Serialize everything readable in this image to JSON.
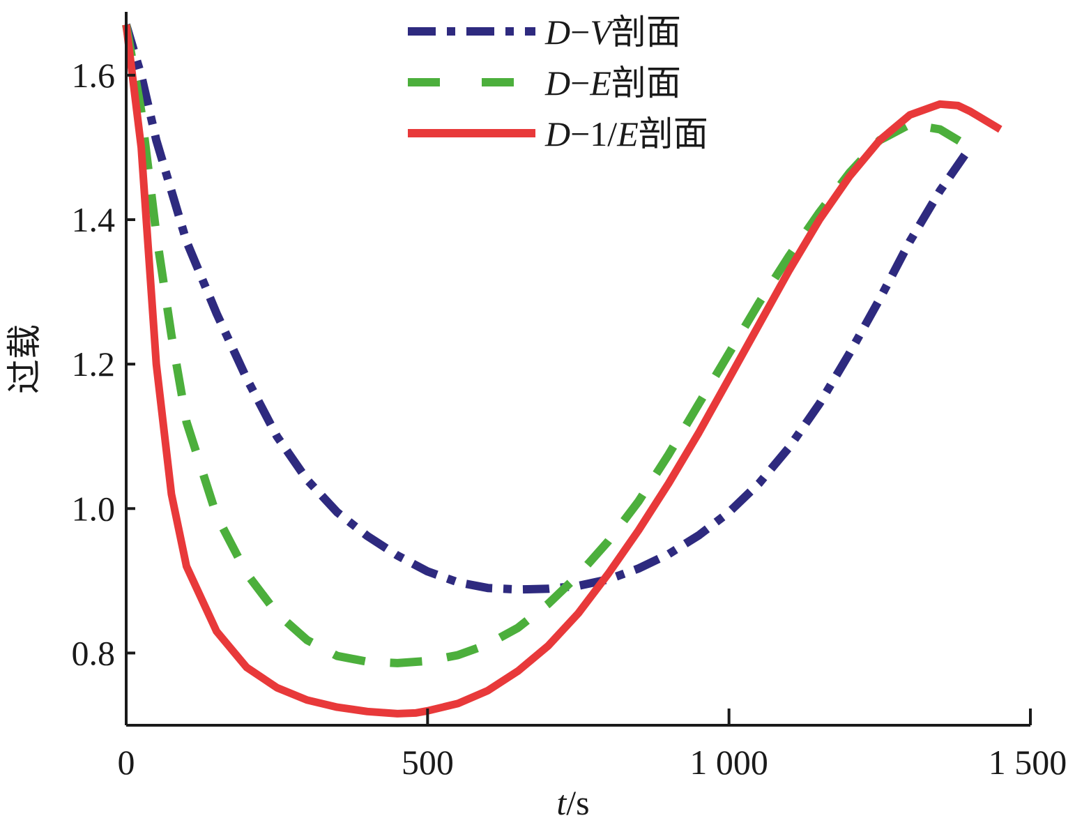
{
  "chart_data": {
    "type": "line",
    "xlabel": "t/s",
    "ylabel": "过载",
    "xlim": [
      0,
      1500
    ],
    "ylim": [
      0.7,
      1.68
    ],
    "x_ticks": [
      0,
      500,
      1000,
      1500
    ],
    "x_tick_labels": [
      "0",
      "500",
      "1 000",
      "1 500"
    ],
    "y_ticks": [
      0.8,
      1.0,
      1.2,
      1.4,
      1.6
    ],
    "y_tick_labels": [
      "0.8",
      "1.0",
      "1.2",
      "1.4",
      "1.6"
    ],
    "grid": false,
    "legend_position": "top-center",
    "series": [
      {
        "name": "D−V剖面",
        "color": "#2e2a7f",
        "style": "dash-dot",
        "x": [
          0,
          25,
          50,
          100,
          150,
          200,
          250,
          300,
          350,
          400,
          450,
          500,
          550,
          600,
          650,
          700,
          750,
          800,
          850,
          900,
          950,
          1000,
          1050,
          1100,
          1150,
          1200,
          1250,
          1300,
          1350,
          1400
        ],
        "y": [
          1.67,
          1.6,
          1.51,
          1.37,
          1.27,
          1.18,
          1.1,
          1.04,
          0.995,
          0.962,
          0.935,
          0.913,
          0.898,
          0.89,
          0.888,
          0.889,
          0.893,
          0.902,
          0.917,
          0.937,
          0.963,
          0.995,
          1.035,
          1.085,
          1.145,
          1.215,
          1.29,
          1.37,
          1.44,
          1.5
        ]
      },
      {
        "name": "D−E剖面",
        "color": "#4caf3c",
        "style": "dash",
        "x": [
          0,
          25,
          50,
          75,
          100,
          150,
          200,
          250,
          300,
          350,
          400,
          450,
          500,
          550,
          600,
          650,
          700,
          750,
          800,
          850,
          900,
          950,
          1000,
          1050,
          1100,
          1150,
          1200,
          1250,
          1300,
          1350,
          1400
        ],
        "y": [
          1.67,
          1.55,
          1.38,
          1.24,
          1.12,
          0.99,
          0.91,
          0.855,
          0.818,
          0.796,
          0.788,
          0.786,
          0.789,
          0.797,
          0.812,
          0.835,
          0.868,
          0.908,
          0.955,
          1.01,
          1.075,
          1.145,
          1.215,
          1.285,
          1.35,
          1.41,
          1.465,
          1.51,
          1.532,
          1.525,
          1.5
        ]
      },
      {
        "name": "D−1/E剖面",
        "color": "#e8393a",
        "style": "solid",
        "x": [
          0,
          25,
          50,
          75,
          100,
          150,
          200,
          250,
          300,
          350,
          400,
          450,
          480,
          500,
          550,
          600,
          650,
          700,
          750,
          800,
          850,
          900,
          950,
          1000,
          1050,
          1100,
          1150,
          1200,
          1250,
          1300,
          1350,
          1380,
          1400,
          1450
        ],
        "y": [
          1.67,
          1.5,
          1.2,
          1.02,
          0.92,
          0.83,
          0.78,
          0.752,
          0.735,
          0.725,
          0.719,
          0.716,
          0.717,
          0.72,
          0.73,
          0.748,
          0.775,
          0.81,
          0.855,
          0.91,
          0.97,
          1.035,
          1.105,
          1.18,
          1.255,
          1.33,
          1.4,
          1.46,
          1.51,
          1.545,
          1.56,
          1.558,
          1.55,
          1.525
        ]
      }
    ]
  }
}
